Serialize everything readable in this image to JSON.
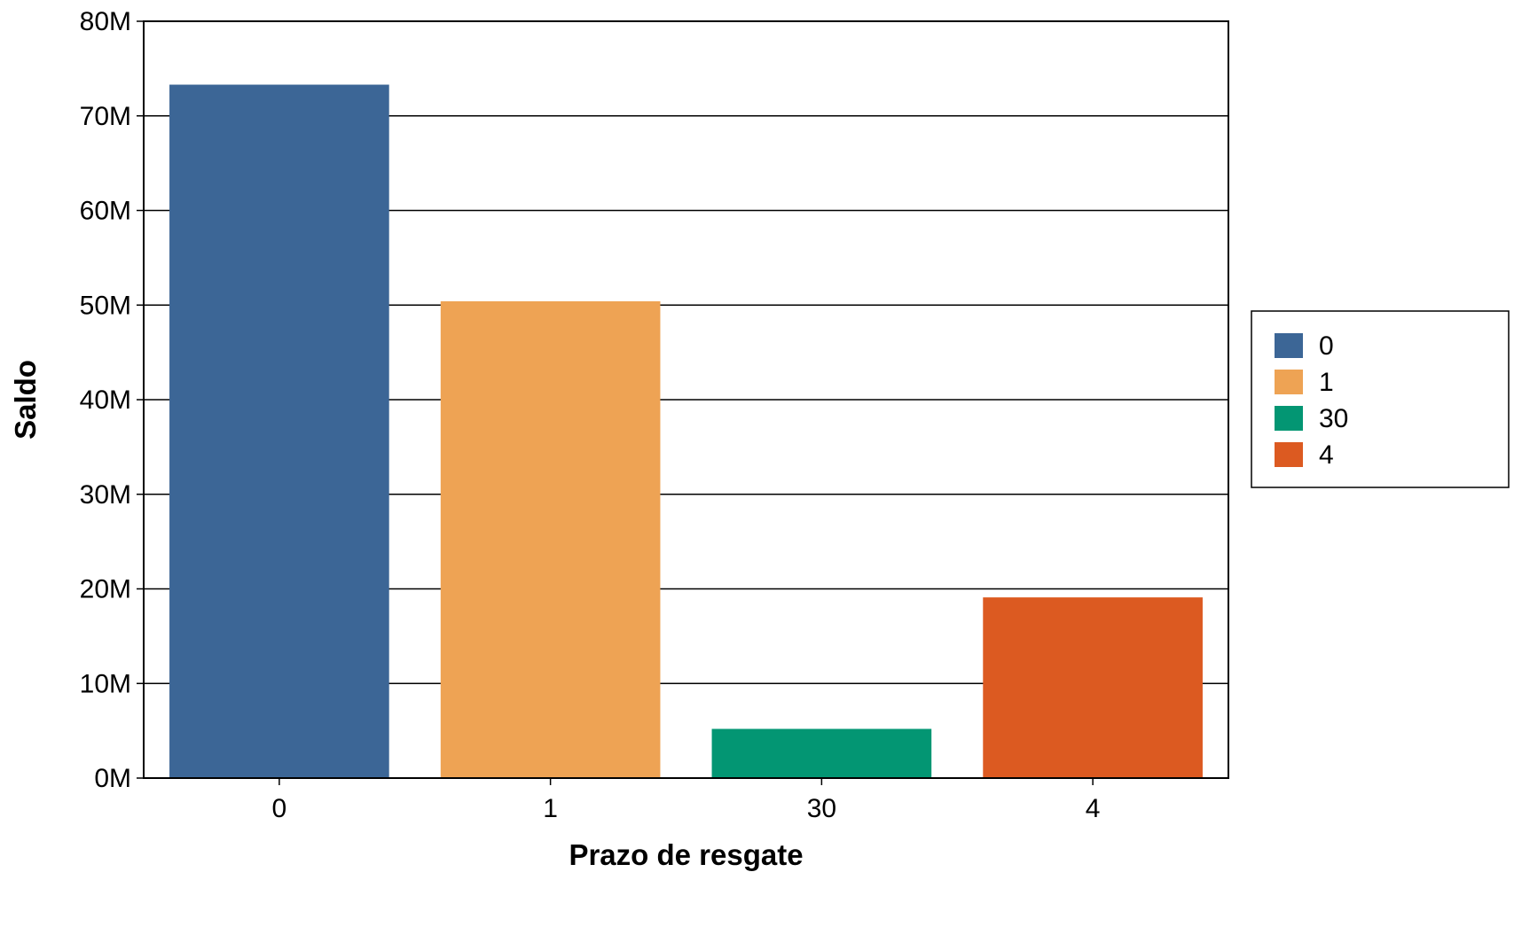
{
  "chart_data": {
    "type": "bar",
    "categories": [
      "0",
      "1",
      "30",
      "4"
    ],
    "values": [
      73300000,
      50400000,
      5200000,
      19100000
    ],
    "colors": [
      "#3c6696",
      "#eea354",
      "#039673",
      "#dc5a21"
    ],
    "xlabel": "Prazo de resgate",
    "ylabel": "Saldo",
    "ylim": [
      0,
      80000000
    ],
    "yticks": [
      0,
      10000000,
      20000000,
      30000000,
      40000000,
      50000000,
      60000000,
      70000000,
      80000000
    ],
    "ytick_labels": [
      "0M",
      "10M",
      "20M",
      "30M",
      "40M",
      "50M",
      "60M",
      "70M",
      "80M"
    ],
    "grid": true,
    "legend": {
      "position": "right",
      "entries": [
        "0",
        "1",
        "30",
        "4"
      ]
    }
  }
}
